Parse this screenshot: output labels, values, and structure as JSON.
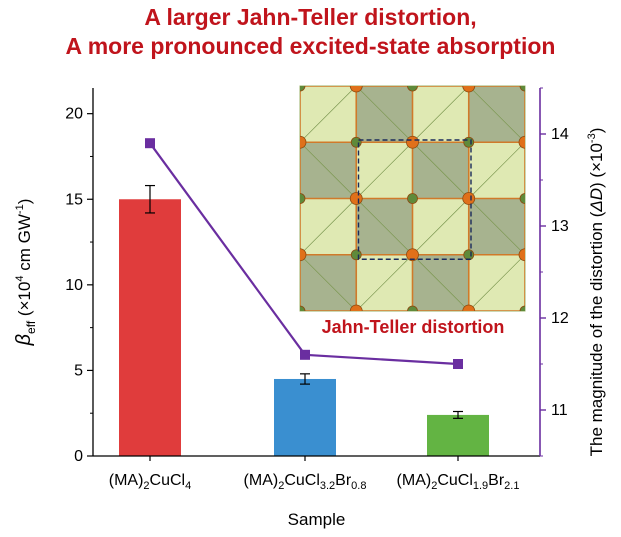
{
  "title_lines": [
    "A larger Jahn-Teller distortion,",
    "A more pronounced excited-state absorption"
  ],
  "inset_label": "Jahn-Teller distortion",
  "colors": {
    "title": "#c0141c",
    "inset_label": "#c0141c",
    "line": "#6a2ea0",
    "right_axis": "#6a2ea0",
    "octahedron_dark": "#8a9a6a",
    "octahedron_light": "#d4e19a",
    "atom": "#e0701a"
  },
  "chart_data": {
    "type": "bar",
    "xlabel": "Sample",
    "ylabel": "β_eff (×10^4 cm GW^-1)",
    "ylabel_right": "The magnitude of the distortion (ΔD) (×10^-3)",
    "categories": [
      {
        "base": "(MA)",
        "parts": [
          [
            "2",
            "sub"
          ],
          [
            "CuCl",
            ""
          ],
          [
            "4",
            "sub"
          ]
        ]
      },
      {
        "base": "(MA)",
        "parts": [
          [
            "2",
            "sub"
          ],
          [
            "CuCl",
            ""
          ],
          [
            "3.2",
            "sub"
          ],
          [
            "Br",
            ""
          ],
          [
            "0.8",
            "sub"
          ]
        ]
      },
      {
        "base": "(MA)",
        "parts": [
          [
            "2",
            "sub"
          ],
          [
            "CuCl",
            ""
          ],
          [
            "1.9",
            "sub"
          ],
          [
            "Br",
            ""
          ],
          [
            "2.1",
            "sub"
          ]
        ]
      }
    ],
    "category_labels": [
      "(MA)2CuCl4",
      "(MA)2CuCl3.2Br0.8",
      "(MA)2CuCl1.9Br2.1"
    ],
    "series": [
      {
        "axis": "left",
        "kind": "bar",
        "values": [
          15.0,
          4.5,
          2.4
        ],
        "errors": [
          0.8,
          0.3,
          0.2
        ],
        "colors": [
          "#e03c3c",
          "#3a8fd0",
          "#63b443"
        ]
      },
      {
        "axis": "right",
        "kind": "line",
        "values": [
          13.9,
          11.6,
          11.5
        ],
        "marker": "square"
      }
    ],
    "ylim": [
      0,
      21.5
    ],
    "ylim_right": [
      10.5,
      14.5
    ],
    "yticks": [
      0,
      5,
      10,
      15,
      20
    ],
    "yticks_right": [
      11,
      12,
      13,
      14
    ],
    "grid": false,
    "legend": "none"
  }
}
